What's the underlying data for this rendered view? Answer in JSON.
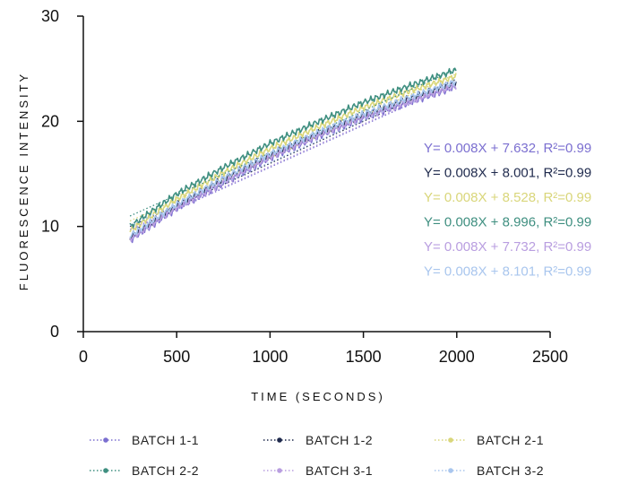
{
  "chart_data": {
    "type": "line",
    "xlabel": "TIME (SECONDS)",
    "ylabel": "FLUORESCENCE INTENSITY",
    "xlim": [
      0,
      2500
    ],
    "ylim": [
      0,
      30
    ],
    "xticks": [
      0,
      500,
      1000,
      1500,
      2000,
      2500
    ],
    "yticks": [
      0,
      10,
      20,
      30
    ],
    "grid": false,
    "legend_position": "bottom",
    "series": [
      {
        "name": "BATCH 1-1",
        "color": "#7b6fd0",
        "slope": 0.008,
        "intercept": 7.632,
        "r2": 0.99,
        "equation": "Y= 0.008X + 7.632, R²=0.99",
        "x": [
          250,
          500,
          750,
          1000,
          1250,
          1500,
          1750,
          2000
        ],
        "y": [
          8.7,
          11.7,
          14.1,
          16.5,
          18.5,
          20.3,
          21.8,
          23.3
        ]
      },
      {
        "name": "BATCH 1-2",
        "color": "#1f2a4d",
        "slope": 0.008,
        "intercept": 8.001,
        "r2": 0.99,
        "equation": "Y= 0.008X + 8.001, R²=0.99",
        "x": [
          250,
          500,
          750,
          1000,
          1250,
          1500,
          1750,
          2000
        ],
        "y": [
          9.0,
          12.0,
          14.5,
          16.8,
          18.8,
          20.6,
          22.2,
          23.7
        ]
      },
      {
        "name": "BATCH 2-1",
        "color": "#d9d67a",
        "slope": 0.008,
        "intercept": 8.528,
        "r2": 0.99,
        "equation": "Y= 0.008X + 8.528, R²=0.99",
        "x": [
          250,
          500,
          750,
          1000,
          1250,
          1500,
          1750,
          2000
        ],
        "y": [
          9.6,
          12.6,
          15.1,
          17.4,
          19.4,
          21.3,
          22.9,
          24.3
        ]
      },
      {
        "name": "BATCH 2-2",
        "color": "#3f8f80",
        "slope": 0.008,
        "intercept": 8.996,
        "r2": 0.99,
        "equation": "Y= 0.008X + 8.996, R²=0.99",
        "x": [
          250,
          500,
          750,
          1000,
          1250,
          1500,
          1750,
          2000
        ],
        "y": [
          10.0,
          13.1,
          15.6,
          17.9,
          19.9,
          21.8,
          23.4,
          24.9
        ]
      },
      {
        "name": "BATCH 3-1",
        "color": "#b99ee0",
        "slope": 0.008,
        "intercept": 7.732,
        "r2": 0.99,
        "equation": "Y= 0.008X + 7.732, R²=0.99",
        "x": [
          250,
          500,
          750,
          1000,
          1250,
          1500,
          1750,
          2000
        ],
        "y": [
          8.8,
          11.8,
          14.2,
          16.6,
          18.6,
          20.4,
          21.9,
          23.4
        ]
      },
      {
        "name": "BATCH 3-2",
        "color": "#a9c6ee",
        "slope": 0.008,
        "intercept": 8.101,
        "r2": 0.99,
        "equation": "Y= 0.008X + 8.101, R²=0.99",
        "x": [
          250,
          500,
          750,
          1000,
          1250,
          1500,
          1750,
          2000
        ],
        "y": [
          9.1,
          12.1,
          14.6,
          16.9,
          18.9,
          20.7,
          22.3,
          23.8
        ]
      }
    ]
  }
}
